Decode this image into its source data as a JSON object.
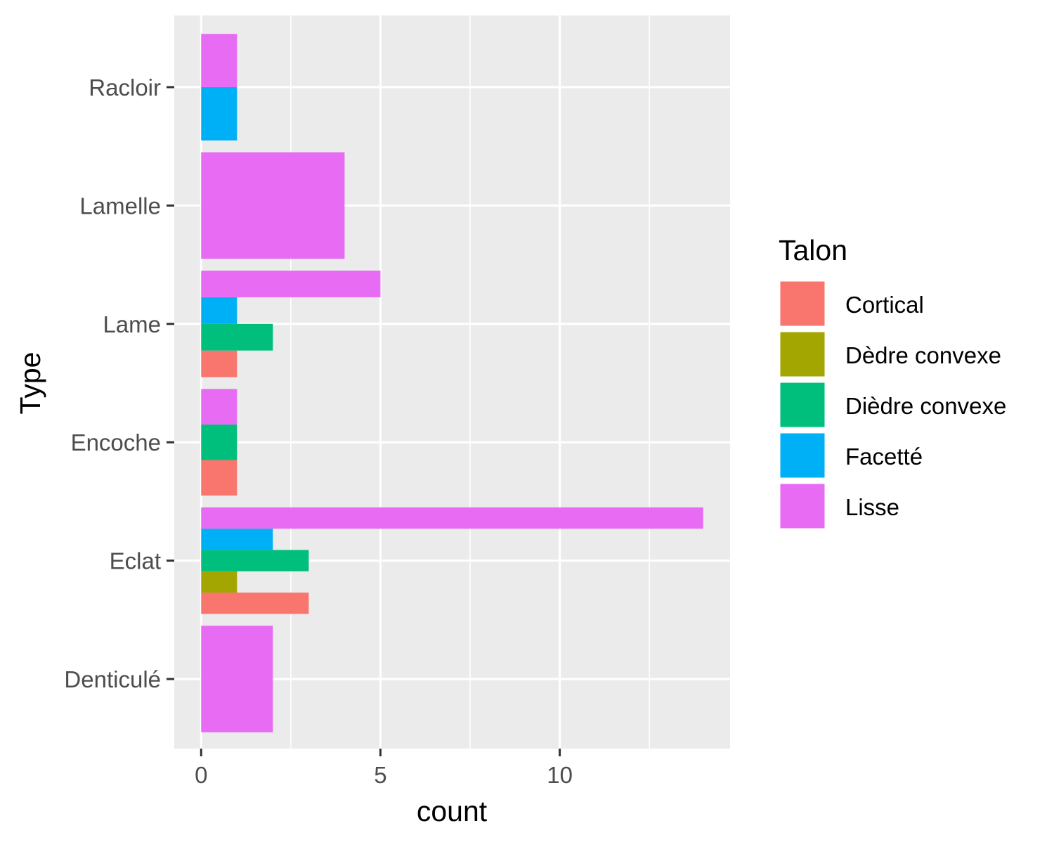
{
  "chart_data": {
    "type": "bar",
    "orientation": "horizontal",
    "position": "dodge",
    "xlabel": "count",
    "ylabel": "Type",
    "xlim": [
      -0.75,
      14.75
    ],
    "x_ticks": [
      0,
      5,
      10
    ],
    "x_tick_labels": [
      "0",
      "5",
      "10"
    ],
    "grid": true,
    "categories": [
      "Denticulé",
      "Eclat",
      "Encoche",
      "Lame",
      "Lamelle",
      "Racloir"
    ],
    "legend": {
      "title": "Talon",
      "placement": "right",
      "entries": [
        {
          "name": "Cortical",
          "color": "#F8766D"
        },
        {
          "name": "Dèdre convexe",
          "color": "#A3A500"
        },
        {
          "name": "Dièdre convexe",
          "color": "#00BF7D"
        },
        {
          "name": "Facetté",
          "color": "#00B0F6"
        },
        {
          "name": "Lisse",
          "color": "#E76BF3"
        }
      ]
    },
    "series": [
      {
        "name": "Cortical",
        "color": "#F8766D",
        "values": [
          null,
          3,
          1,
          1,
          null,
          null
        ]
      },
      {
        "name": "Dèdre convexe",
        "color": "#A3A500",
        "values": [
          null,
          1,
          null,
          null,
          null,
          null
        ]
      },
      {
        "name": "Dièdre convexe",
        "color": "#00BF7D",
        "values": [
          null,
          3,
          1,
          2,
          null,
          null
        ]
      },
      {
        "name": "Facetté",
        "color": "#00B0F6",
        "values": [
          null,
          2,
          null,
          1,
          null,
          1
        ]
      },
      {
        "name": "Lisse",
        "color": "#E76BF3",
        "values": [
          2,
          14,
          1,
          5,
          4,
          1
        ]
      }
    ],
    "colors": {
      "panel_background": "#EBEBEB",
      "grid_line": "#FFFFFF",
      "tick_label": "#4D4D4D",
      "tick_mark": "#333333"
    }
  }
}
